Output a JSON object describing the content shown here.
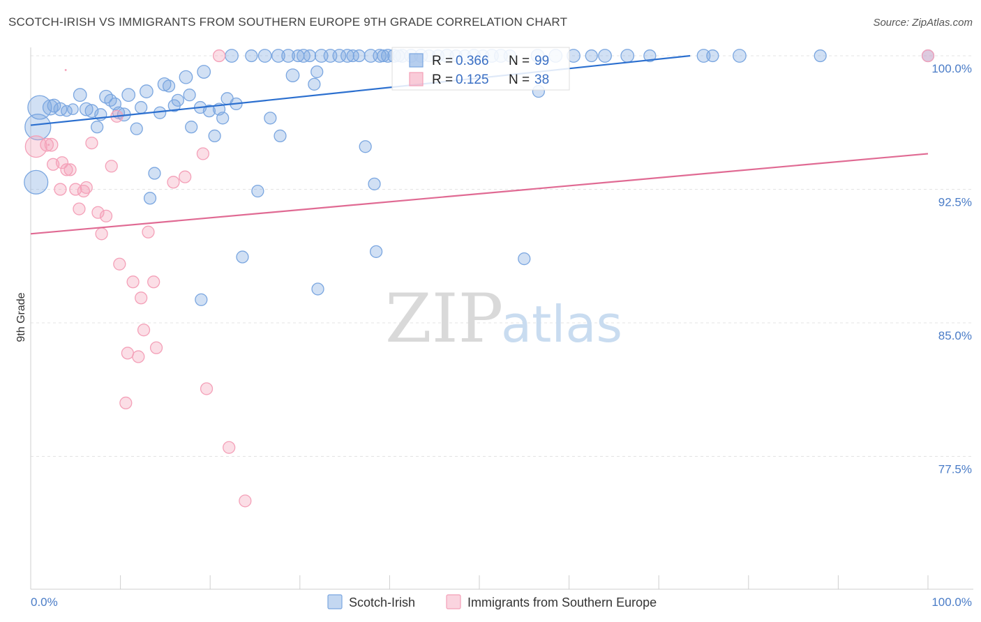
{
  "title": "SCOTCH-IRISH VS IMMIGRANTS FROM SOUTHERN EUROPE 9TH GRADE CORRELATION CHART",
  "source": "Source: ZipAtlas.com",
  "watermark": {
    "zip": "ZIP",
    "atlas": "atlas"
  },
  "chart_data": {
    "type": "scatter",
    "xlabel": "",
    "ylabel": "9th Grade",
    "xlim": [
      0,
      100
    ],
    "ylim": [
      70.5,
      101.5
    ],
    "x_tick_labels": {
      "left": "0.0%",
      "right": "100.0%"
    },
    "y_ticks": [
      {
        "value": 100.0,
        "label": "100.0%"
      },
      {
        "value": 92.5,
        "label": "92.5%"
      },
      {
        "value": 85.0,
        "label": "85.0%"
      },
      {
        "value": 77.5,
        "label": "77.5%"
      }
    ],
    "grid": true,
    "legend_placement": "top-center",
    "bottom_legend": [
      "Scotch-Irish",
      "Immigrants from Southern Europe"
    ],
    "series": [
      {
        "name": "Scotch-Irish",
        "color": "#7aa6e0",
        "line_color": "#2b6fcf",
        "r_label": "R =",
        "r_value": "0.366",
        "n_label": "N =",
        "n_value": "99",
        "trend": {
          "x": [
            0,
            73.5
          ],
          "y": [
            96.1,
            100.0
          ]
        },
        "points": [
          [
            1.0,
            97.1,
            22
          ],
          [
            2.2,
            97.1,
            14
          ],
          [
            2.6,
            97.2,
            12
          ],
          [
            3.3,
            97.0,
            12
          ],
          [
            4.0,
            96.9,
            10
          ],
          [
            4.7,
            97.0,
            10
          ],
          [
            5.5,
            97.8,
            12
          ],
          [
            6.2,
            97.0,
            12
          ],
          [
            6.8,
            96.9,
            12
          ],
          [
            7.4,
            96.0,
            11
          ],
          [
            7.8,
            96.7,
            11
          ],
          [
            8.4,
            97.7,
            12
          ],
          [
            8.9,
            97.5,
            11
          ],
          [
            9.4,
            97.3,
            11
          ],
          [
            9.8,
            96.8,
            11
          ],
          [
            10.4,
            96.7,
            12
          ],
          [
            10.9,
            97.8,
            12
          ],
          [
            11.8,
            95.9,
            11
          ],
          [
            12.3,
            97.1,
            11
          ],
          [
            12.9,
            98.0,
            12
          ],
          [
            13.8,
            93.4,
            11
          ],
          [
            13.3,
            92.0,
            11
          ],
          [
            14.4,
            96.8,
            11
          ],
          [
            14.9,
            98.4,
            12
          ],
          [
            15.4,
            98.3,
            11
          ],
          [
            16.0,
            97.2,
            11
          ],
          [
            16.4,
            97.5,
            11
          ],
          [
            17.3,
            98.8,
            12
          ],
          [
            17.7,
            97.8,
            11
          ],
          [
            17.9,
            96.0,
            11
          ],
          [
            18.9,
            97.1,
            11
          ],
          [
            19.0,
            86.3,
            11
          ],
          [
            19.3,
            99.1,
            12
          ],
          [
            19.9,
            96.9,
            11
          ],
          [
            20.5,
            95.5,
            11
          ],
          [
            21.0,
            97.0,
            11
          ],
          [
            21.4,
            96.5,
            11
          ],
          [
            21.9,
            97.6,
            11
          ],
          [
            22.9,
            97.3,
            11
          ],
          [
            22.4,
            100.0,
            12
          ],
          [
            23.6,
            88.7,
            11
          ],
          [
            24.6,
            100.0,
            11
          ],
          [
            25.3,
            92.4,
            11
          ],
          [
            26.1,
            100.0,
            12
          ],
          [
            26.7,
            96.5,
            11
          ],
          [
            27.6,
            100.0,
            12
          ],
          [
            27.8,
            95.5,
            11
          ],
          [
            28.7,
            100.0,
            12
          ],
          [
            29.2,
            98.9,
            12
          ],
          [
            29.8,
            100.0,
            11
          ],
          [
            30.4,
            100.0,
            12
          ],
          [
            31.1,
            100.0,
            11
          ],
          [
            31.6,
            98.4,
            11
          ],
          [
            31.9,
            99.1,
            11
          ],
          [
            32.4,
            100.0,
            12
          ],
          [
            32.0,
            86.9,
            11
          ],
          [
            33.4,
            100.0,
            12
          ],
          [
            34.4,
            100.0,
            12
          ],
          [
            35.3,
            100.0,
            12
          ],
          [
            35.9,
            100.0,
            11
          ],
          [
            36.6,
            100.0,
            11
          ],
          [
            37.3,
            94.9,
            11
          ],
          [
            37.9,
            100.0,
            12
          ],
          [
            38.3,
            92.8,
            11
          ],
          [
            38.5,
            89.0,
            11
          ],
          [
            38.9,
            100.0,
            12
          ],
          [
            39.3,
            100.0,
            11
          ],
          [
            39.8,
            100.0,
            12
          ],
          [
            40.5,
            100.0,
            12
          ],
          [
            41.0,
            100.0,
            11
          ],
          [
            41.4,
            100.0,
            12
          ],
          [
            42.4,
            100.0,
            12
          ],
          [
            43.5,
            100.0,
            12
          ],
          [
            44.4,
            100.0,
            11
          ],
          [
            45.4,
            100.0,
            11
          ],
          [
            46.4,
            100.0,
            12
          ],
          [
            47.4,
            100.0,
            11
          ],
          [
            48.4,
            100.0,
            11
          ],
          [
            49.4,
            100.0,
            12
          ],
          [
            50.4,
            100.0,
            11
          ],
          [
            51.4,
            100.0,
            12
          ],
          [
            52.4,
            100.0,
            12
          ],
          [
            53.4,
            100.0,
            11
          ],
          [
            55.0,
            88.6,
            11
          ],
          [
            56.5,
            100.0,
            12
          ],
          [
            56.6,
            98.0,
            11
          ],
          [
            58.5,
            100.0,
            12
          ],
          [
            60.5,
            100.0,
            12
          ],
          [
            62.5,
            100.0,
            11
          ],
          [
            64.0,
            100.0,
            12
          ],
          [
            66.5,
            100.0,
            12
          ],
          [
            69.0,
            100.0,
            11
          ],
          [
            75.0,
            100.0,
            12
          ],
          [
            76.0,
            100.0,
            11
          ],
          [
            79.0,
            100.0,
            12
          ],
          [
            88.0,
            100.0,
            11
          ],
          [
            100.0,
            100.0,
            11
          ],
          [
            0.8,
            96.0,
            24
          ],
          [
            0.6,
            92.9,
            22
          ]
        ]
      },
      {
        "name": "Immigrants from Southern Europe",
        "color": "#f4a0b8",
        "line_color": "#e06a93",
        "r_label": "R =",
        "r_value": "0.125",
        "n_label": "N =",
        "n_value": "38",
        "trend": {
          "x": [
            0,
            100
          ],
          "y": [
            90.0,
            94.5
          ]
        },
        "points": [
          [
            0.6,
            94.9,
            20
          ],
          [
            1.8,
            95.0,
            12
          ],
          [
            2.3,
            95.0,
            12
          ],
          [
            2.5,
            93.9,
            11
          ],
          [
            3.3,
            92.5,
            11
          ],
          [
            3.5,
            94.0,
            11
          ],
          [
            4.0,
            93.6,
            11
          ],
          [
            4.4,
            93.6,
            11
          ],
          [
            5.0,
            92.5,
            11
          ],
          [
            5.4,
            91.4,
            11
          ],
          [
            5.9,
            92.4,
            11
          ],
          [
            6.2,
            92.6,
            11
          ],
          [
            6.8,
            95.1,
            11
          ],
          [
            7.5,
            91.2,
            11
          ],
          [
            7.9,
            90.0,
            11
          ],
          [
            8.4,
            91.0,
            11
          ],
          [
            9.0,
            93.8,
            11
          ],
          [
            9.6,
            96.6,
            11
          ],
          [
            9.9,
            88.3,
            11
          ],
          [
            10.6,
            80.5,
            11
          ],
          [
            10.8,
            83.3,
            11
          ],
          [
            11.4,
            87.3,
            11
          ],
          [
            12.0,
            83.1,
            11
          ],
          [
            12.3,
            86.4,
            11
          ],
          [
            12.6,
            84.6,
            11
          ],
          [
            13.1,
            90.1,
            11
          ],
          [
            13.7,
            87.3,
            11
          ],
          [
            14.0,
            83.6,
            11
          ],
          [
            15.9,
            92.9,
            11
          ],
          [
            17.2,
            93.2,
            11
          ],
          [
            19.2,
            94.5,
            11
          ],
          [
            19.6,
            81.3,
            11
          ],
          [
            21.0,
            100.0,
            11
          ],
          [
            22.1,
            78.0,
            11
          ],
          [
            23.9,
            75.0,
            11
          ],
          [
            100.0,
            100.0,
            11
          ],
          [
            3.9,
            99.2,
            1
          ],
          [
            2.0,
            95.0,
            1
          ]
        ]
      }
    ]
  }
}
